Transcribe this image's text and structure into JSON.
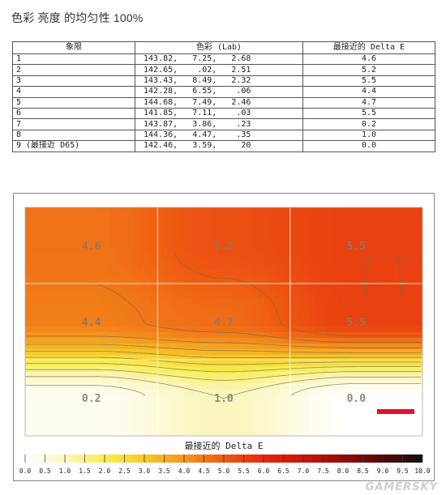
{
  "page": {
    "title": "色彩 亮度 的均匀性 100%",
    "watermark": "GAMERSKY"
  },
  "table": {
    "headers": [
      "象限",
      "色彩 (Lab)",
      "最接近的 Delta E"
    ],
    "rows": [
      {
        "region": "1",
        "lab": "143.82,   7.25,   2.68",
        "de": "4.6"
      },
      {
        "region": "2",
        "lab": "142.65,    .02,   2.51",
        "de": "5.2"
      },
      {
        "region": "3",
        "lab": "143.43,   8.49,   2.32",
        "de": "5.5"
      },
      {
        "region": "4",
        "lab": "142.28,   6.55,    .06",
        "de": "4.4"
      },
      {
        "region": "5",
        "lab": "144.68,   7.49,   2.46",
        "de": "4.7"
      },
      {
        "region": "6",
        "lab": "141.85,   7.11,    .03",
        "de": "5.5"
      },
      {
        "region": "7",
        "lab": "143.87,   3.86,    .23",
        "de": "0.2"
      },
      {
        "region": "8",
        "lab": "144.36,   4.47,    .35",
        "de": "1.0"
      },
      {
        "region": "9 (最接近 D65)",
        "lab": "142.46,   3.59,     20",
        "de": "0.0"
      }
    ]
  },
  "chart_data": {
    "type": "heatmap",
    "title": "",
    "xlabel": "最接近的 Delta E",
    "grid": {
      "rows": 3,
      "cols": 3
    },
    "cells": [
      [
        4.6,
        5.2,
        5.5
      ],
      [
        4.4,
        4.7,
        5.5
      ],
      [
        0.2,
        1.0,
        0.0
      ]
    ],
    "cell_labels": [
      [
        "4.6",
        "5.2",
        "5.5"
      ],
      [
        "4.4",
        "4.7",
        "5.5"
      ],
      [
        "0.2",
        "1.0",
        "0.0"
      ]
    ],
    "scale": {
      "min": 0.0,
      "max": 10.0,
      "ticks": [
        "0.0",
        "0.5",
        "1.0",
        "1.5",
        "2.0",
        "2.5",
        "3.0",
        "3.5",
        "4.0",
        "4.5",
        "5.0",
        "5.5",
        "6.0",
        "6.5",
        "7.0",
        "7.5",
        "8.0",
        "8.5",
        "9.0",
        "9.5",
        "10.0"
      ]
    },
    "colors": {
      "low": "#ffffff",
      "yellow": "#f7ee3a",
      "orange": "#f39a1a",
      "red": "#e41e10",
      "dark": "#111111",
      "marker": "#e0142e"
    }
  }
}
